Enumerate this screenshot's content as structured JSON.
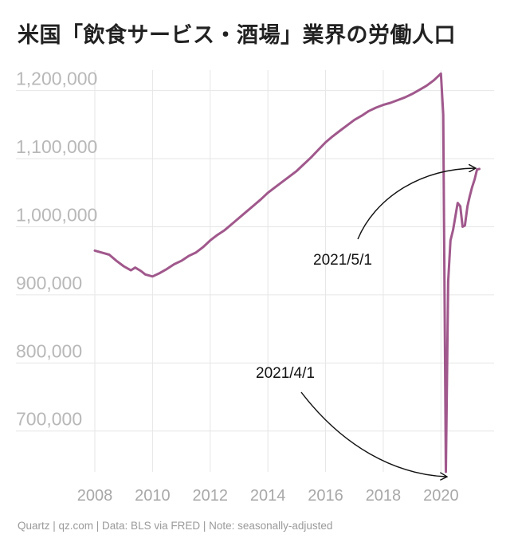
{
  "title": "米国「飲食サービス・酒場」業界の労働人口",
  "footer": "Quartz | qz.com | Data: BLS via FRED | Note: seasonally-adjusted",
  "colors": {
    "line": "#a0588c",
    "grid": "#e6e6e6",
    "ytick": "#b8b8b8",
    "xtick": "#a8a8a8"
  },
  "chart_data": {
    "type": "line",
    "title": "米国「飲食サービス・酒場」業界の労働人口",
    "xlabel": "",
    "ylabel": "",
    "xlim": [
      2008,
      2021.4
    ],
    "ylim": [
      640000,
      1230000
    ],
    "grid": true,
    "y_ticks": [
      {
        "value": 700000,
        "label": "700,000"
      },
      {
        "value": 800000,
        "label": "800,000"
      },
      {
        "value": 900000,
        "label": "900,000"
      },
      {
        "value": 1000000,
        "label": "1,000,000"
      },
      {
        "value": 1100000,
        "label": "1,100,000"
      },
      {
        "value": 1200000,
        "label": "1,200,000"
      }
    ],
    "x_ticks": [
      {
        "value": 2008,
        "label": "2008"
      },
      {
        "value": 2010,
        "label": "2010"
      },
      {
        "value": 2012,
        "label": "2012"
      },
      {
        "value": 2014,
        "label": "2014"
      },
      {
        "value": 2016,
        "label": "2016"
      },
      {
        "value": 2018,
        "label": "2018"
      },
      {
        "value": 2020,
        "label": "2020"
      }
    ],
    "series": [
      {
        "x": [
          2008.0,
          2008.25,
          2008.5,
          2008.75,
          2009.0,
          2009.25,
          2009.4,
          2009.6,
          2009.75,
          2010.0,
          2010.25,
          2010.5,
          2010.75,
          2011.0,
          2011.25,
          2011.5,
          2011.75,
          2012.0,
          2012.25,
          2012.5,
          2012.75,
          2013.0,
          2013.25,
          2013.5,
          2013.75,
          2014.0,
          2014.25,
          2014.5,
          2014.75,
          2015.0,
          2015.25,
          2015.5,
          2015.75,
          2016.0,
          2016.25,
          2016.5,
          2016.75,
          2017.0,
          2017.25,
          2017.5,
          2017.75,
          2018.0,
          2018.25,
          2018.5,
          2018.75,
          2019.0,
          2019.25,
          2019.5,
          2019.75,
          2020.0,
          2020.08,
          2020.17,
          2020.25,
          2020.33,
          2020.42,
          2020.5,
          2020.58,
          2020.67,
          2020.75,
          2020.83,
          2020.92,
          2021.0,
          2021.08,
          2021.17,
          2021.25,
          2021.33
        ],
        "y": [
          965000,
          962000,
          959000,
          950000,
          942000,
          936000,
          940000,
          935000,
          930000,
          927000,
          932000,
          938000,
          945000,
          950000,
          957000,
          962000,
          970000,
          980000,
          988000,
          995000,
          1004000,
          1013000,
          1022000,
          1031000,
          1040000,
          1050000,
          1058000,
          1066000,
          1074000,
          1082000,
          1092000,
          1102000,
          1113000,
          1124000,
          1133000,
          1141000,
          1149000,
          1157000,
          1163000,
          1170000,
          1175000,
          1179000,
          1182000,
          1186000,
          1190000,
          1195000,
          1201000,
          1207000,
          1215000,
          1225000,
          1165000,
          640000,
          920000,
          980000,
          995000,
          1015000,
          1035000,
          1030000,
          1000000,
          1002000,
          1030000,
          1045000,
          1058000,
          1070000,
          1084000,
          1085000
        ]
      }
    ],
    "annotations": [
      {
        "text": "2021/5/1"
      },
      {
        "text": "2021/4/1"
      }
    ]
  }
}
